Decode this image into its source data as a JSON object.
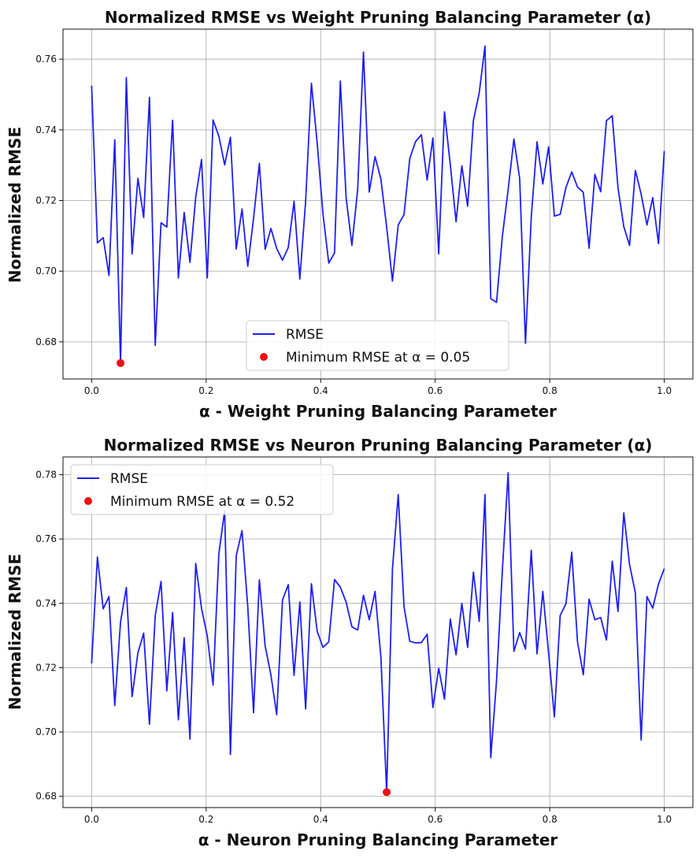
{
  "colors": {
    "line": "#1f1fef",
    "marker": "#ee1111",
    "grid": "#b0b0b0"
  },
  "chart_data": [
    {
      "type": "line",
      "title": "Normalized RMSE vs Weight Pruning Balancing Parameter (α)",
      "xlabel": "α - Weight Pruning Balancing Parameter",
      "ylabel": "Normalized RMSE",
      "xlim": [
        -0.05,
        1.05
      ],
      "ylim": [
        0.6695,
        0.7685
      ],
      "xticks": [
        0.0,
        0.2,
        0.4,
        0.6,
        0.8,
        1.0
      ],
      "xtick_labels": [
        "0.0",
        "0.2",
        "0.4",
        "0.6",
        "0.8",
        "1.0"
      ],
      "yticks": [
        0.68,
        0.7,
        0.72,
        0.74,
        0.76
      ],
      "ytick_labels": [
        "0.68",
        "0.70",
        "0.72",
        "0.74",
        "0.76"
      ],
      "grid": true,
      "legend_position": "lower-center",
      "series": [
        {
          "name": "RMSE",
          "x": [
            0.0,
            0.0101,
            0.0202,
            0.0303,
            0.0404,
            0.0505,
            0.0606,
            0.0707,
            0.0808,
            0.0909,
            0.101,
            0.1111,
            0.1212,
            0.1313,
            0.1414,
            0.1515,
            0.1616,
            0.1717,
            0.1818,
            0.1919,
            0.202,
            0.2121,
            0.2222,
            0.2323,
            0.2424,
            0.2525,
            0.2626,
            0.2727,
            0.2828,
            0.2929,
            0.303,
            0.3131,
            0.3232,
            0.3333,
            0.3434,
            0.3535,
            0.3636,
            0.3737,
            0.3838,
            0.3939,
            0.404,
            0.4141,
            0.4242,
            0.4343,
            0.4444,
            0.4545,
            0.4646,
            0.4747,
            0.4848,
            0.4949,
            0.5051,
            0.5152,
            0.5253,
            0.5354,
            0.5455,
            0.5556,
            0.5657,
            0.5758,
            0.5859,
            0.596,
            0.6061,
            0.6162,
            0.6263,
            0.6364,
            0.6465,
            0.6566,
            0.6667,
            0.6768,
            0.6869,
            0.697,
            0.7071,
            0.7172,
            0.7273,
            0.7374,
            0.7475,
            0.7576,
            0.7677,
            0.7778,
            0.7879,
            0.798,
            0.8081,
            0.8182,
            0.8283,
            0.8384,
            0.8485,
            0.8586,
            0.8687,
            0.8788,
            0.8889,
            0.899,
            0.9091,
            0.9192,
            0.9293,
            0.9394,
            0.9495,
            0.9596,
            0.9697,
            0.9798,
            0.9899,
            1.0
          ],
          "values": [
            0.7525,
            0.708,
            0.7095,
            0.6988,
            0.7372,
            0.674,
            0.7548,
            0.7049,
            0.7263,
            0.7152,
            0.7492,
            0.679,
            0.7137,
            0.7125,
            0.7427,
            0.6981,
            0.7166,
            0.7025,
            0.721,
            0.7316,
            0.6981,
            0.7428,
            0.7382,
            0.7301,
            0.7379,
            0.7063,
            0.7176,
            0.7014,
            0.715,
            0.7305,
            0.7062,
            0.7121,
            0.7064,
            0.7031,
            0.7067,
            0.7198,
            0.6978,
            0.7198,
            0.7532,
            0.7363,
            0.7162,
            0.7023,
            0.7052,
            0.7538,
            0.7208,
            0.7073,
            0.7231,
            0.762,
            0.7224,
            0.7324,
            0.7261,
            0.7125,
            0.6972,
            0.7131,
            0.716,
            0.7319,
            0.7367,
            0.7386,
            0.7258,
            0.7377,
            0.7049,
            0.7451,
            0.7302,
            0.714,
            0.7298,
            0.7184,
            0.7427,
            0.7504,
            0.7637,
            0.6922,
            0.6912,
            0.7098,
            0.723,
            0.7374,
            0.7262,
            0.6796,
            0.7153,
            0.7366,
            0.7247,
            0.7352,
            0.7156,
            0.7161,
            0.7237,
            0.7281,
            0.7238,
            0.7223,
            0.7065,
            0.7274,
            0.7225,
            0.7426,
            0.744,
            0.7236,
            0.7126,
            0.7073,
            0.7285,
            0.7218,
            0.7131,
            0.7208,
            0.7078,
            0.734
          ]
        }
      ],
      "minimum": {
        "label": "Minimum RMSE at α = 0.05",
        "x": 0.0505,
        "y": 0.674
      }
    },
    {
      "type": "line",
      "title": "Normalized RMSE vs Neuron Pruning Balancing Parameter (α)",
      "xlabel": "α - Neuron Pruning Balancing Parameter",
      "ylabel": "Normalized RMSE",
      "xlim": [
        -0.05,
        1.05
      ],
      "ylim": [
        0.6765,
        0.7855
      ],
      "xticks": [
        0.0,
        0.2,
        0.4,
        0.6,
        0.8,
        1.0
      ],
      "xtick_labels": [
        "0.0",
        "0.2",
        "0.4",
        "0.6",
        "0.8",
        "1.0"
      ],
      "yticks": [
        0.68,
        0.7,
        0.72,
        0.74,
        0.76,
        0.78
      ],
      "ytick_labels": [
        "0.68",
        "0.70",
        "0.72",
        "0.74",
        "0.76",
        "0.78"
      ],
      "grid": true,
      "legend_position": "upper-left",
      "series": [
        {
          "name": "RMSE",
          "x": [
            0.0,
            0.0101,
            0.0202,
            0.0303,
            0.0404,
            0.0505,
            0.0606,
            0.0707,
            0.0808,
            0.0909,
            0.101,
            0.1111,
            0.1212,
            0.1313,
            0.1414,
            0.1515,
            0.1616,
            0.1717,
            0.1818,
            0.1919,
            0.202,
            0.2121,
            0.2222,
            0.2323,
            0.2424,
            0.2525,
            0.2626,
            0.2727,
            0.2828,
            0.2929,
            0.303,
            0.3131,
            0.3232,
            0.3333,
            0.3434,
            0.3535,
            0.3636,
            0.3737,
            0.3838,
            0.3939,
            0.404,
            0.4141,
            0.4242,
            0.4343,
            0.4444,
            0.4545,
            0.4646,
            0.4747,
            0.4848,
            0.4949,
            0.5051,
            0.5152,
            0.5253,
            0.5354,
            0.5455,
            0.5556,
            0.5657,
            0.5758,
            0.5859,
            0.596,
            0.6061,
            0.6162,
            0.6263,
            0.6364,
            0.6465,
            0.6566,
            0.6667,
            0.6768,
            0.6869,
            0.697,
            0.7071,
            0.7172,
            0.7273,
            0.7374,
            0.7475,
            0.7576,
            0.7677,
            0.7778,
            0.7879,
            0.798,
            0.8081,
            0.8182,
            0.8283,
            0.8384,
            0.8485,
            0.8586,
            0.8687,
            0.8788,
            0.8889,
            0.899,
            0.9091,
            0.9192,
            0.9293,
            0.9394,
            0.9495,
            0.9596,
            0.9697,
            0.9798,
            0.9899,
            1.0
          ],
          "values": [
            0.7213,
            0.7544,
            0.7383,
            0.7421,
            0.7082,
            0.7342,
            0.7449,
            0.711,
            0.7246,
            0.7307,
            0.7024,
            0.7362,
            0.7468,
            0.7128,
            0.7371,
            0.7038,
            0.7293,
            0.6978,
            0.7524,
            0.7384,
            0.7298,
            0.7146,
            0.7555,
            0.7688,
            0.693,
            0.7548,
            0.7626,
            0.7388,
            0.706,
            0.7473,
            0.7268,
            0.7177,
            0.7054,
            0.741,
            0.7458,
            0.7176,
            0.7404,
            0.7072,
            0.7461,
            0.7313,
            0.7263,
            0.728,
            0.7474,
            0.745,
            0.7404,
            0.7327,
            0.7317,
            0.7425,
            0.7349,
            0.7437,
            0.7234,
            0.6813,
            0.7506,
            0.7738,
            0.739,
            0.7282,
            0.7277,
            0.7278,
            0.7304,
            0.7076,
            0.7198,
            0.7102,
            0.7351,
            0.724,
            0.74,
            0.7263,
            0.7497,
            0.7344,
            0.7738,
            0.692,
            0.716,
            0.7501,
            0.7806,
            0.7251,
            0.7309,
            0.7258,
            0.7565,
            0.7243,
            0.7437,
            0.7245,
            0.7047,
            0.7362,
            0.7399,
            0.7559,
            0.728,
            0.7178,
            0.7413,
            0.7349,
            0.7356,
            0.7286,
            0.7531,
            0.7375,
            0.7681,
            0.752,
            0.7433,
            0.6975,
            0.7421,
            0.7385,
            0.746,
            0.7508
          ]
        }
      ],
      "minimum": {
        "label": "Minimum RMSE at α = 0.52",
        "x": 0.5152,
        "y": 0.6813
      }
    }
  ]
}
